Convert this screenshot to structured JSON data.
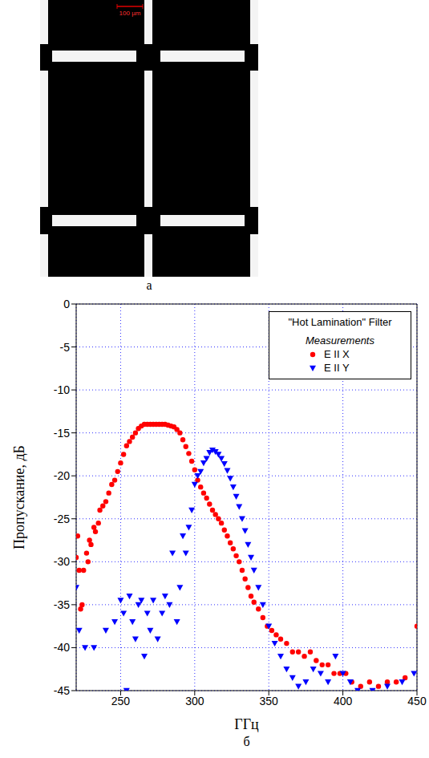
{
  "figure_a": {
    "label": "а",
    "scale_bar": "100 µm"
  },
  "chart_data": {
    "type": "scatter",
    "label": "б",
    "title": "\"Hot Lamination\" Filter",
    "subtitle": "Measurements",
    "x_label": "ГГц",
    "y_label": "Пропускание, дБ",
    "xlim": [
      220,
      450
    ],
    "xticks": [
      250,
      300,
      350,
      400,
      450
    ],
    "ylim": [
      -45,
      0
    ],
    "yticks": [
      0,
      -5,
      -10,
      -15,
      -20,
      -25,
      -30,
      -35,
      -40,
      -45
    ],
    "grid": true,
    "legend": "upper right",
    "series": [
      {
        "name": "E II X",
        "color": "#ff0000",
        "marker": "circle",
        "x": [
          220,
          221,
          222,
          223,
          224,
          225,
          227,
          228,
          229,
          230,
          232,
          233,
          235,
          236,
          238,
          240,
          242,
          244,
          246,
          248,
          250,
          252,
          254,
          256,
          258,
          260,
          262,
          264,
          266,
          268,
          270,
          272,
          274,
          276,
          278,
          280,
          282,
          284,
          286,
          288,
          290,
          292,
          294,
          296,
          298,
          300,
          302,
          304,
          306,
          308,
          310,
          312,
          314,
          316,
          318,
          320,
          322,
          324,
          326,
          328,
          330,
          332,
          334,
          336,
          338,
          340,
          343,
          346,
          349,
          352,
          355,
          358,
          362,
          366,
          370,
          374,
          378,
          382,
          386,
          390,
          394,
          398,
          402,
          406,
          412,
          418,
          424,
          430,
          436,
          442,
          450
        ],
        "values": [
          -29.5,
          -27,
          -31,
          -35.5,
          -35,
          -31,
          -29,
          -30,
          -27.5,
          -28,
          -26,
          -26.5,
          -25.5,
          -24,
          -23.5,
          -23,
          -22,
          -21,
          -20.5,
          -19.5,
          -18.5,
          -17.5,
          -16.5,
          -16,
          -15.5,
          -15,
          -14.5,
          -14.2,
          -14,
          -14,
          -14,
          -14,
          -14,
          -14,
          -14,
          -14,
          -14.1,
          -14.2,
          -14.3,
          -14.6,
          -15,
          -15.8,
          -16.6,
          -17.4,
          -18.3,
          -19.3,
          -20.5,
          -21.3,
          -22,
          -22.6,
          -23.3,
          -24,
          -24.5,
          -25,
          -25.5,
          -26.3,
          -27,
          -27.8,
          -28.5,
          -29.3,
          -30,
          -31,
          -32,
          -33,
          -34,
          -34.7,
          -35.5,
          -36.5,
          -37.5,
          -38,
          -38.5,
          -39,
          -39.5,
          -40.5,
          -40.5,
          -41,
          -40.5,
          -41.5,
          -42,
          -42,
          -43,
          -43,
          -43,
          -44,
          -44.5,
          -44,
          -44.5,
          -44,
          -44,
          -43.5,
          -37.5
        ]
      },
      {
        "name": "E II Y",
        "color": "#0000ff",
        "marker": "triangle_down",
        "x": [
          220,
          222,
          226,
          232,
          240,
          246,
          250,
          252,
          254,
          256,
          258,
          260,
          262,
          264,
          266,
          268,
          270,
          272,
          275,
          278,
          280,
          283,
          285,
          288,
          290,
          292,
          294,
          296,
          298,
          300,
          302,
          304,
          306,
          308,
          310,
          312,
          314,
          316,
          318,
          320,
          322,
          324,
          326,
          328,
          330,
          332,
          334,
          336,
          338,
          340,
          343,
          346,
          350,
          354,
          358,
          362,
          366,
          370,
          375,
          380,
          385,
          390,
          395,
          400,
          405,
          410,
          420,
          430,
          440,
          448
        ],
        "values": [
          -33,
          -38,
          -40,
          -40,
          -38,
          -37,
          -34.5,
          -36,
          -45,
          -34,
          -37,
          -39,
          -35,
          -34.5,
          -41,
          -36,
          -38,
          -34.5,
          -39,
          -36,
          -34,
          -35,
          -29,
          -37,
          -33,
          -27,
          -29,
          -26,
          -24,
          -21,
          -20,
          -19.5,
          -18.5,
          -18,
          -17.3,
          -17,
          -17.2,
          -17.5,
          -18,
          -18.6,
          -19.4,
          -20.3,
          -21.3,
          -22.4,
          -23.6,
          -25,
          -26.4,
          -28,
          -29.5,
          -31,
          -33,
          -35,
          -37.5,
          -39.5,
          -41,
          -42.5,
          -43.5,
          -44.5,
          -44,
          -42.5,
          -43,
          -44,
          -41,
          -43,
          -44,
          -45,
          -45,
          -44.5,
          -44,
          -43
        ]
      }
    ]
  }
}
